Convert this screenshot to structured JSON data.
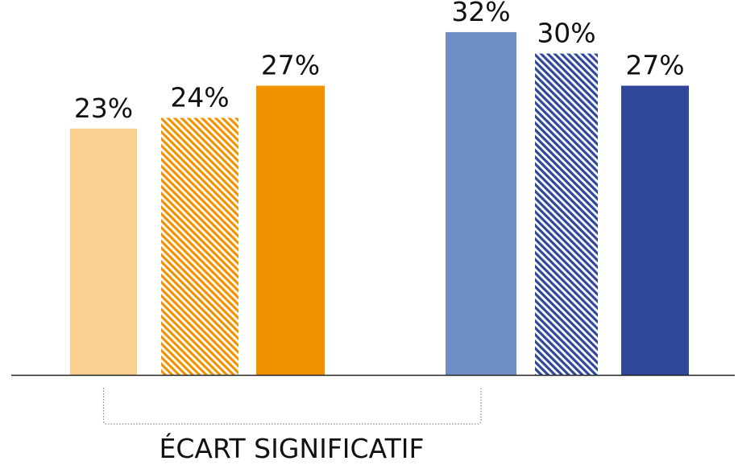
{
  "chart_data": {
    "type": "bar",
    "ylim": [
      0,
      35
    ],
    "series": [
      {
        "values": [
          23
        ],
        "color": "#FBCF90",
        "pattern": "solid"
      },
      {
        "values": [
          24
        ],
        "color": "#F29200",
        "pattern": "hatched"
      },
      {
        "values": [
          27
        ],
        "color": "#F29200",
        "pattern": "solid"
      },
      {
        "values": [
          32
        ],
        "color": "#6F8FC8",
        "pattern": "solid"
      },
      {
        "values": [
          30
        ],
        "color": "#30479A",
        "pattern": "hatched"
      },
      {
        "values": [
          27
        ],
        "color": "#30479A",
        "pattern": "solid"
      }
    ],
    "data_labels": [
      "23%",
      "24%",
      "27%",
      "32%",
      "30%",
      "27%"
    ],
    "annotations": [
      {
        "text": "ÉCART SIGNIFICATIF",
        "style": "dotted bracket",
        "connects": [
          0,
          3
        ]
      }
    ],
    "axis_line_color": "#222222",
    "grid": false,
    "legend": "none"
  }
}
